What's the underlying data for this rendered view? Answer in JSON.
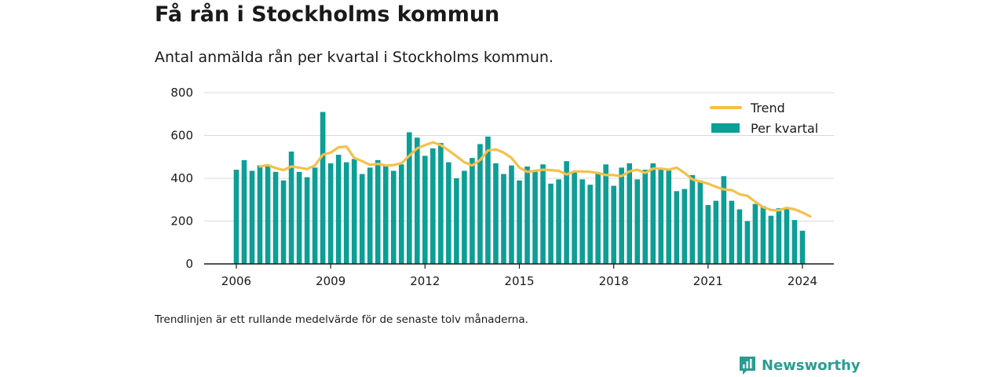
{
  "header": {
    "title": "Få rån i Stockholms kommun",
    "subtitle": "Antal anmälda rån per kvartal i Stockholms kommun."
  },
  "footer": {
    "note": "Trendlinjen är ett rullande medelvärde för de senaste tolv månaderna.",
    "brand": "Newsworthy",
    "brand_icon": "newsworthy-logo-icon"
  },
  "colors": {
    "bars": "#0d9e96",
    "trend": "#f5c04a",
    "grid": "#d9d9d9",
    "axis": "#1a1a1a",
    "brand": "#2a9d8f"
  },
  "chart_data": {
    "type": "bar",
    "title": "Få rån i Stockholms kommun",
    "subtitle": "Antal anmälda rån per kvartal i Stockholms kommun.",
    "xlabel": "",
    "ylabel": "",
    "ylim": [
      0,
      800
    ],
    "y_ticks": [
      0,
      200,
      400,
      600,
      800
    ],
    "x_ticks": [
      "2006",
      "2009",
      "2012",
      "2015",
      "2018",
      "2021",
      "2024"
    ],
    "grid": true,
    "legend_position": "top-right",
    "x_start": "2006 Q1",
    "series": [
      {
        "name": "Per kvartal",
        "kind": "bar",
        "color": "#0d9e96",
        "values": [
          440,
          485,
          435,
          460,
          460,
          430,
          390,
          525,
          430,
          405,
          450,
          710,
          470,
          510,
          475,
          490,
          420,
          450,
          485,
          460,
          435,
          465,
          615,
          590,
          505,
          540,
          565,
          475,
          400,
          435,
          495,
          560,
          595,
          470,
          420,
          460,
          390,
          455,
          435,
          465,
          375,
          395,
          480,
          430,
          395,
          370,
          425,
          465,
          365,
          450,
          470,
          395,
          440,
          470,
          445,
          440,
          340,
          350,
          415,
          390,
          275,
          295,
          410,
          295,
          255,
          200,
          280,
          270,
          225,
          260,
          265,
          205,
          155
        ]
      },
      {
        "name": "Trend",
        "kind": "line",
        "color": "#f5c04a",
        "start_index": 3,
        "values": [
          455,
          462,
          448,
          438,
          455,
          450,
          443,
          460,
          510,
          520,
          545,
          548,
          495,
          480,
          463,
          467,
          460,
          462,
          470,
          505,
          540,
          555,
          568,
          555,
          530,
          503,
          475,
          460,
          485,
          530,
          535,
          520,
          495,
          450,
          430,
          435,
          440,
          438,
          435,
          418,
          432,
          432,
          430,
          425,
          415,
          415,
          410,
          432,
          440,
          425,
          445,
          445,
          440,
          450,
          425,
          395,
          385,
          375,
          360,
          348,
          345,
          325,
          318,
          290,
          265,
          252,
          250,
          262,
          255,
          240,
          222
        ]
      }
    ]
  }
}
